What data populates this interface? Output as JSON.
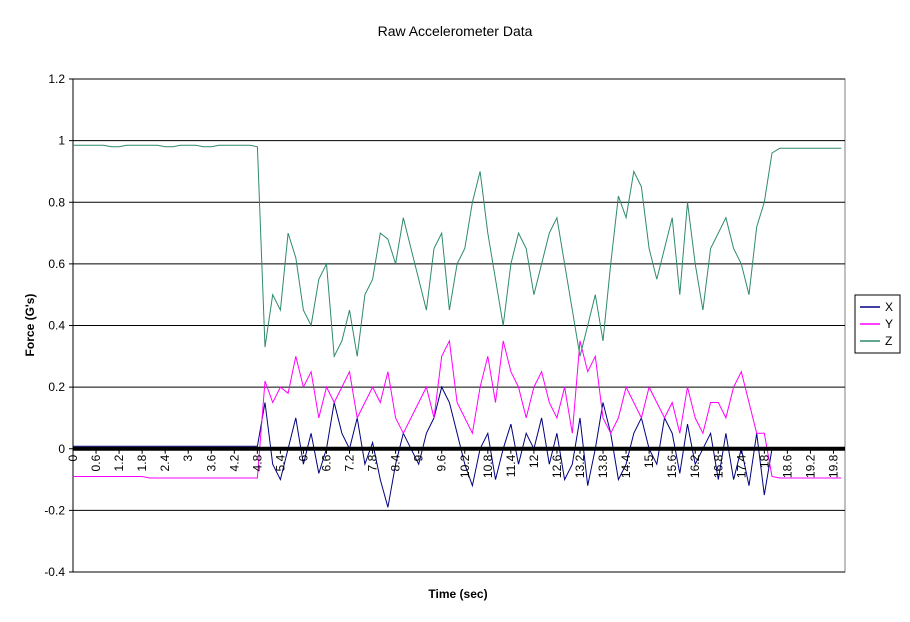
{
  "chart_data": {
    "type": "line",
    "title": "Raw Accelerometer Data",
    "x_label": "Time (sec)",
    "y_label": "Force (G's)",
    "x": [
      0,
      0.2,
      0.4,
      0.6,
      0.8,
      1,
      1.2,
      1.4,
      1.6,
      1.8,
      2,
      2.2,
      2.4,
      2.6,
      2.8,
      3,
      3.2,
      3.4,
      3.6,
      3.8,
      4,
      4.2,
      4.4,
      4.6,
      4.8,
      5,
      5.2,
      5.4,
      5.6,
      5.8,
      6,
      6.2,
      6.4,
      6.6,
      6.8,
      7,
      7.2,
      7.4,
      7.6,
      7.8,
      8,
      8.2,
      8.4,
      8.6,
      8.8,
      9,
      9.2,
      9.4,
      9.6,
      9.8,
      10,
      10.2,
      10.4,
      10.6,
      10.8,
      11,
      11.2,
      11.4,
      11.6,
      11.8,
      12,
      12.2,
      12.4,
      12.6,
      12.8,
      13,
      13.2,
      13.4,
      13.6,
      13.8,
      14,
      14.2,
      14.4,
      14.6,
      14.8,
      15,
      15.2,
      15.4,
      15.6,
      15.8,
      16,
      16.2,
      16.4,
      16.6,
      16.8,
      17,
      17.2,
      17.4,
      17.6,
      17.8,
      18,
      18.2,
      18.4,
      18.6,
      18.8,
      19,
      19.2,
      19.4,
      19.6,
      19.8,
      20
    ],
    "series": [
      {
        "name": "X",
        "color": "#000080",
        "values": [
          0.008,
          0.008,
          0.008,
          0.008,
          0.008,
          0.008,
          0.008,
          0.008,
          0.008,
          0.008,
          0.008,
          0.008,
          0.008,
          0.008,
          0.008,
          0.008,
          0.008,
          0.008,
          0.008,
          0.008,
          0.008,
          0.008,
          0.008,
          0.008,
          0.008,
          0.15,
          -0.05,
          -0.1,
          0,
          0.1,
          -0.05,
          0.05,
          -0.08,
          0,
          0.15,
          0.05,
          0,
          0.1,
          -0.05,
          0.02,
          -0.1,
          -0.19,
          -0.05,
          0.05,
          0,
          -0.05,
          0.05,
          0.1,
          0.2,
          0.15,
          0.05,
          -0.05,
          -0.12,
          0,
          0.05,
          -0.1,
          0,
          0.08,
          -0.05,
          0.05,
          0,
          0.1,
          -0.05,
          0.05,
          -0.1,
          -0.05,
          0.1,
          -0.12,
          0,
          0.15,
          0.05,
          -0.1,
          -0.05,
          0.05,
          0.1,
          0,
          -0.05,
          0.1,
          0.05,
          -0.08,
          0.08,
          -0.05,
          0,
          0.05,
          -0.1,
          0.05,
          -0.1,
          0,
          -0.12,
          0.05,
          -0.15,
          0,
          0,
          0,
          0,
          0,
          0,
          0,
          0,
          0,
          0
        ]
      },
      {
        "name": "Y",
        "color": "#ff00ff",
        "values": [
          -0.09,
          -0.09,
          -0.09,
          -0.09,
          -0.09,
          -0.09,
          -0.09,
          -0.09,
          -0.09,
          -0.09,
          -0.095,
          -0.095,
          -0.095,
          -0.095,
          -0.095,
          -0.095,
          -0.095,
          -0.095,
          -0.095,
          -0.095,
          -0.095,
          -0.095,
          -0.095,
          -0.095,
          -0.095,
          0.22,
          0.15,
          0.2,
          0.18,
          0.3,
          0.2,
          0.25,
          0.1,
          0.2,
          0.15,
          0.2,
          0.25,
          0.1,
          0.15,
          0.2,
          0.15,
          0.25,
          0.1,
          0.05,
          0.1,
          0.15,
          0.2,
          0.1,
          0.3,
          0.35,
          0.15,
          0.1,
          0.05,
          0.2,
          0.3,
          0.15,
          0.35,
          0.25,
          0.2,
          0.1,
          0.2,
          0.25,
          0.15,
          0.1,
          0.2,
          0.05,
          0.35,
          0.25,
          0.3,
          0.1,
          0.05,
          0.1,
          0.2,
          0.15,
          0.1,
          0.2,
          0.15,
          0.1,
          0.15,
          0.05,
          0.2,
          0.1,
          0.05,
          0.15,
          0.15,
          0.1,
          0.2,
          0.25,
          0.15,
          0.05,
          0.05,
          -0.09,
          -0.095,
          -0.095,
          -0.095,
          -0.095,
          -0.095,
          -0.095,
          -0.095,
          -0.095,
          -0.095
        ]
      },
      {
        "name": "Z",
        "color": "#2e8b6a",
        "values": [
          0.985,
          0.985,
          0.985,
          0.985,
          0.985,
          0.98,
          0.98,
          0.985,
          0.985,
          0.985,
          0.985,
          0.985,
          0.98,
          0.98,
          0.985,
          0.985,
          0.985,
          0.98,
          0.98,
          0.985,
          0.985,
          0.985,
          0.985,
          0.985,
          0.98,
          0.33,
          0.5,
          0.45,
          0.7,
          0.62,
          0.45,
          0.4,
          0.55,
          0.6,
          0.3,
          0.35,
          0.45,
          0.3,
          0.5,
          0.55,
          0.7,
          0.68,
          0.6,
          0.75,
          0.65,
          0.55,
          0.45,
          0.65,
          0.7,
          0.45,
          0.6,
          0.65,
          0.8,
          0.9,
          0.7,
          0.55,
          0.4,
          0.6,
          0.7,
          0.65,
          0.5,
          0.6,
          0.7,
          0.75,
          0.6,
          0.45,
          0.3,
          0.4,
          0.5,
          0.35,
          0.6,
          0.82,
          0.75,
          0.9,
          0.85,
          0.65,
          0.55,
          0.65,
          0.75,
          0.5,
          0.8,
          0.6,
          0.45,
          0.65,
          0.7,
          0.75,
          0.65,
          0.6,
          0.5,
          0.72,
          0.8,
          0.96,
          0.975,
          0.975,
          0.975,
          0.975,
          0.975,
          0.975,
          0.975,
          0.975,
          0.975
        ]
      }
    ],
    "xlim": [
      0,
      20.1
    ],
    "xticks": [
      0,
      0.6,
      1.2,
      1.8,
      2.4,
      3,
      3.6,
      4.2,
      4.8,
      5.4,
      6,
      6.6,
      7.2,
      7.8,
      8.4,
      9,
      9.6,
      10.2,
      10.8,
      11.4,
      12,
      12.6,
      13.2,
      13.8,
      14.4,
      15,
      15.6,
      16.2,
      16.8,
      17.4,
      18,
      18.6,
      19.2,
      19.8
    ],
    "ylim": [
      -0.4,
      1.2
    ],
    "yticks": [
      -0.4,
      -0.2,
      0,
      0.2,
      0.4,
      0.6,
      0.8,
      1,
      1.2
    ],
    "grid": true,
    "legend": "right"
  }
}
